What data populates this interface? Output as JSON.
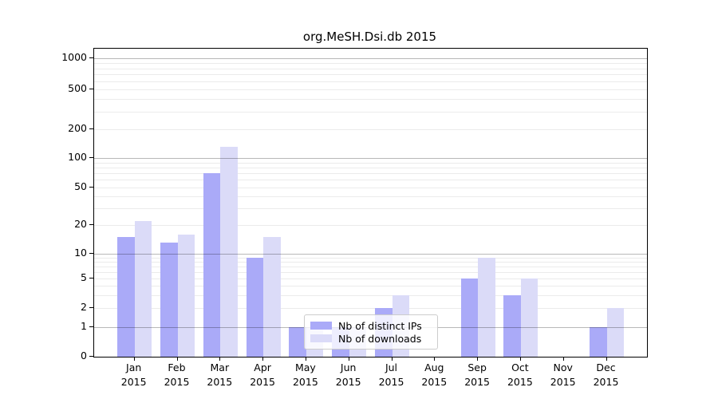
{
  "title": "org.MeSH.Dsi.db 2015",
  "legend": {
    "series1_label": "Nb of distinct IPs",
    "series2_label": "Nb of downloads"
  },
  "colors": {
    "bar_distinct_ips": "#aaaaf8",
    "bar_downloads": "#dbdbf8",
    "grid_major": "#b6b6b6",
    "grid_minor": "#ededed",
    "axis": "#000000"
  },
  "chart_data": {
    "type": "bar",
    "title": "org.MeSH.Dsi.db 2015",
    "categories": [
      "Jan 2015",
      "Feb 2015",
      "Mar 2015",
      "Apr 2015",
      "May 2015",
      "Jun 2015",
      "Jul 2015",
      "Aug 2015",
      "Sep 2015",
      "Oct 2015",
      "Nov 2015",
      "Dec 2015"
    ],
    "x_tick_labels": [
      [
        "Jan",
        "2015"
      ],
      [
        "Feb",
        "2015"
      ],
      [
        "Mar",
        "2015"
      ],
      [
        "Apr",
        "2015"
      ],
      [
        "May",
        "2015"
      ],
      [
        "Jun",
        "2015"
      ],
      [
        "Jul",
        "2015"
      ],
      [
        "Aug",
        "2015"
      ],
      [
        "Sep",
        "2015"
      ],
      [
        "Oct",
        "2015"
      ],
      [
        "Nov",
        "2015"
      ],
      [
        "Dec",
        "2015"
      ]
    ],
    "series": [
      {
        "name": "Nb of distinct IPs",
        "color": "#aaaaf8",
        "values": [
          15,
          13,
          70,
          9,
          1,
          1,
          2,
          0,
          5,
          3,
          0,
          1
        ]
      },
      {
        "name": "Nb of downloads",
        "color": "#dbdbf8",
        "values": [
          22,
          16,
          130,
          15,
          1,
          1,
          3,
          0,
          9,
          5,
          0,
          2
        ]
      }
    ],
    "yscale": "symlog",
    "ylabel": "",
    "xlabel": "",
    "ylim": [
      0,
      1300
    ],
    "y_ticks": [
      0,
      1,
      2,
      5,
      10,
      20,
      50,
      100,
      200,
      500,
      1000
    ],
    "y_major_gridlines": [
      1,
      10,
      100,
      1000
    ],
    "y_minor_gridlines": [
      2,
      3,
      4,
      5,
      6,
      7,
      8,
      9,
      20,
      30,
      40,
      50,
      60,
      70,
      80,
      90,
      200,
      300,
      400,
      500,
      600,
      700,
      800,
      900
    ],
    "grid": "horizontal",
    "legend_position": "inside lower-center"
  }
}
